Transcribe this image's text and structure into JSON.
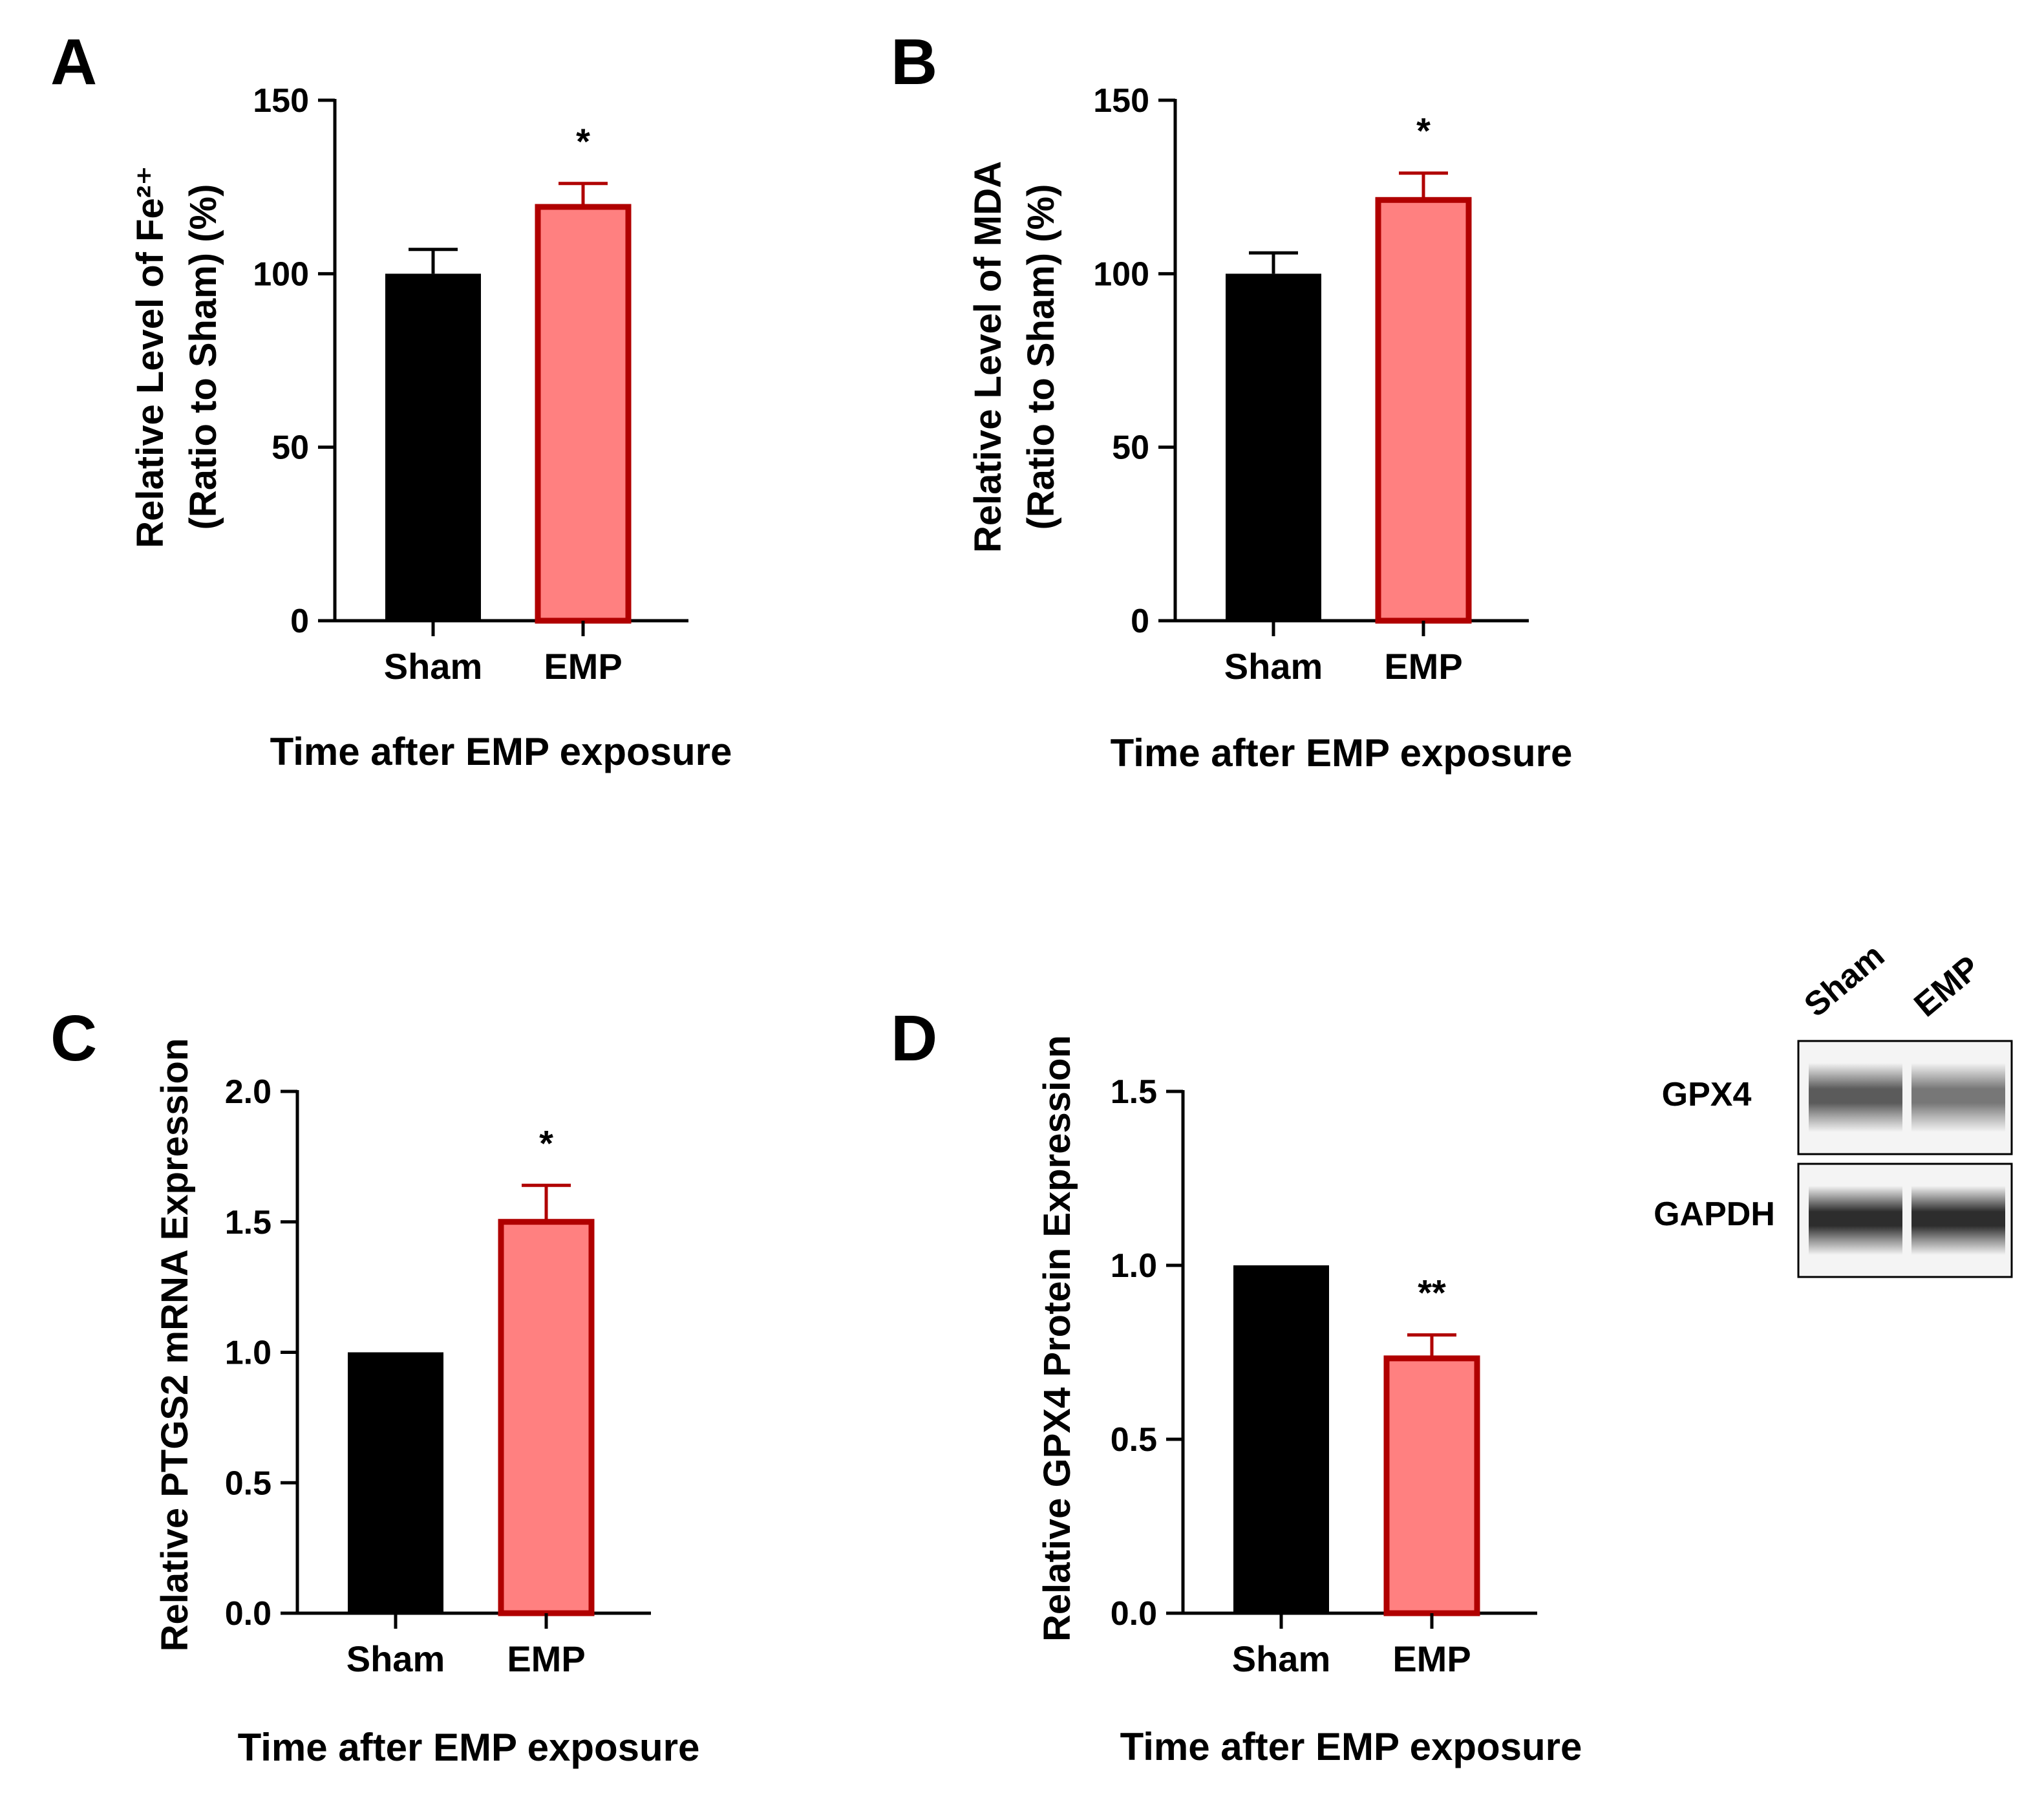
{
  "colors": {
    "sham": "#000000",
    "emp_fill": "#FF8080",
    "emp_stroke": "#B00000",
    "axis": "#000000"
  },
  "chart_data": [
    {
      "panel": "A",
      "type": "bar",
      "categories": [
        "Sham",
        "EMP"
      ],
      "values": [
        100,
        120
      ],
      "errors": [
        7,
        6
      ],
      "significance": [
        "",
        "*"
      ],
      "ylim": [
        0,
        150
      ],
      "yticks": [
        "0",
        "50",
        "100",
        "150"
      ],
      "ylabel_lines": [
        "Relative Level of Fe²⁺",
        "(Ratio to Sham) (%)"
      ],
      "xlabel": "Time after EMP exposure"
    },
    {
      "panel": "B",
      "type": "bar",
      "categories": [
        "Sham",
        "EMP"
      ],
      "values": [
        100,
        122
      ],
      "errors": [
        6,
        7
      ],
      "significance": [
        "",
        "*"
      ],
      "ylim": [
        0,
        150
      ],
      "yticks": [
        "0",
        "50",
        "100",
        "150"
      ],
      "ylabel_lines": [
        "Relative Level of MDA",
        "(Ratio to Sham) (%)"
      ],
      "xlabel": "Time after EMP exposure"
    },
    {
      "panel": "C",
      "type": "bar",
      "categories": [
        "Sham",
        "EMP"
      ],
      "values": [
        1.0,
        1.51
      ],
      "errors": [
        0,
        0.13
      ],
      "significance": [
        "",
        "*"
      ],
      "ylim": [
        0,
        2.0
      ],
      "yticks": [
        "0.0",
        "0.5",
        "1.0",
        "1.5",
        "2.0"
      ],
      "ylabel_lines": [
        "Relative PTGS2 mRNA Expression"
      ],
      "xlabel": "Time after EMP exposure"
    },
    {
      "panel": "D",
      "type": "bar",
      "categories": [
        "Sham",
        "EMP"
      ],
      "values": [
        1.0,
        0.74
      ],
      "errors": [
        0,
        0.06
      ],
      "significance": [
        "",
        "**"
      ],
      "ylim": [
        0,
        1.5
      ],
      "yticks": [
        "0.0",
        "0.5",
        "1.0",
        "1.5"
      ],
      "ylabel_lines": [
        "Relative GPX4 Protein Expression"
      ],
      "xlabel": "Time after EMP exposure"
    }
  ],
  "blot": {
    "lanes": [
      "Sham",
      "EMP"
    ],
    "rows": [
      {
        "label": "GPX4",
        "intensities": [
          0.72,
          0.58
        ]
      },
      {
        "label": "GAPDH",
        "intensities": [
          0.95,
          0.95
        ]
      }
    ]
  }
}
